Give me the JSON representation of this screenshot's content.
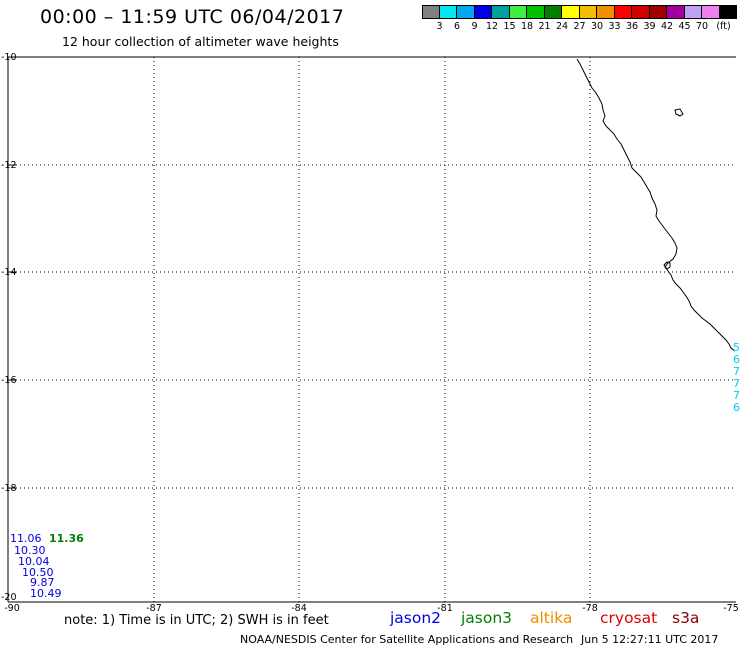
{
  "header": {
    "title": "00:00 – 11:59 UTC 06/04/2017",
    "subtitle": "12 hour collection of altimeter wave heights"
  },
  "color_scale": {
    "colors": [
      "#808080",
      "#00e8f0",
      "#00a8f0",
      "#0000e8",
      "#00a0a0",
      "#40f040",
      "#00c000",
      "#008000",
      "#ffff00",
      "#f0c000",
      "#f09000",
      "#ff0000",
      "#d00000",
      "#a00000",
      "#a000a0",
      "#c0a0f0",
      "#f080f0",
      "#000000"
    ],
    "labels": [
      "3",
      "6",
      "9",
      "12",
      "15",
      "18",
      "21",
      "24",
      "27",
      "30",
      "33",
      "36",
      "39",
      "42",
      "45",
      "70",
      "(ft)"
    ]
  },
  "axes": {
    "lat_labels": [
      "-10",
      "-12",
      "-14",
      "-16",
      "-18",
      "-20"
    ],
    "lon_labels": [
      "-90",
      "-87",
      "-84",
      "-81",
      "-78",
      "-75"
    ]
  },
  "observations": {
    "jason2_track": [
      "11.06",
      "10.30",
      "10.04",
      "10.50",
      "9.87",
      "10.49"
    ],
    "jason3_value": "11.36",
    "edge_fragments": [
      "5",
      "6",
      "7",
      "7",
      "7",
      "6"
    ]
  },
  "footer": {
    "note": "note:  1) Time is in UTC;  2) SWH is in feet",
    "satellites": [
      {
        "name": "jason2",
        "color": "#0000e0"
      },
      {
        "name": "jason3",
        "color": "#008000"
      },
      {
        "name": "altika",
        "color": "#f08c00"
      },
      {
        "name": "cryosat",
        "color": "#e00000"
      },
      {
        "name": "s3a",
        "color": "#8b0000"
      }
    ],
    "credit": "NOAA/NESDIS Center for Satellite Applications and Research",
    "timestamp": "Jun  5 12:27:11 UTC 2017"
  },
  "colors": {
    "jason2": "#0000e0",
    "jason3": "#008000",
    "edge_track": "#00c8f0"
  }
}
